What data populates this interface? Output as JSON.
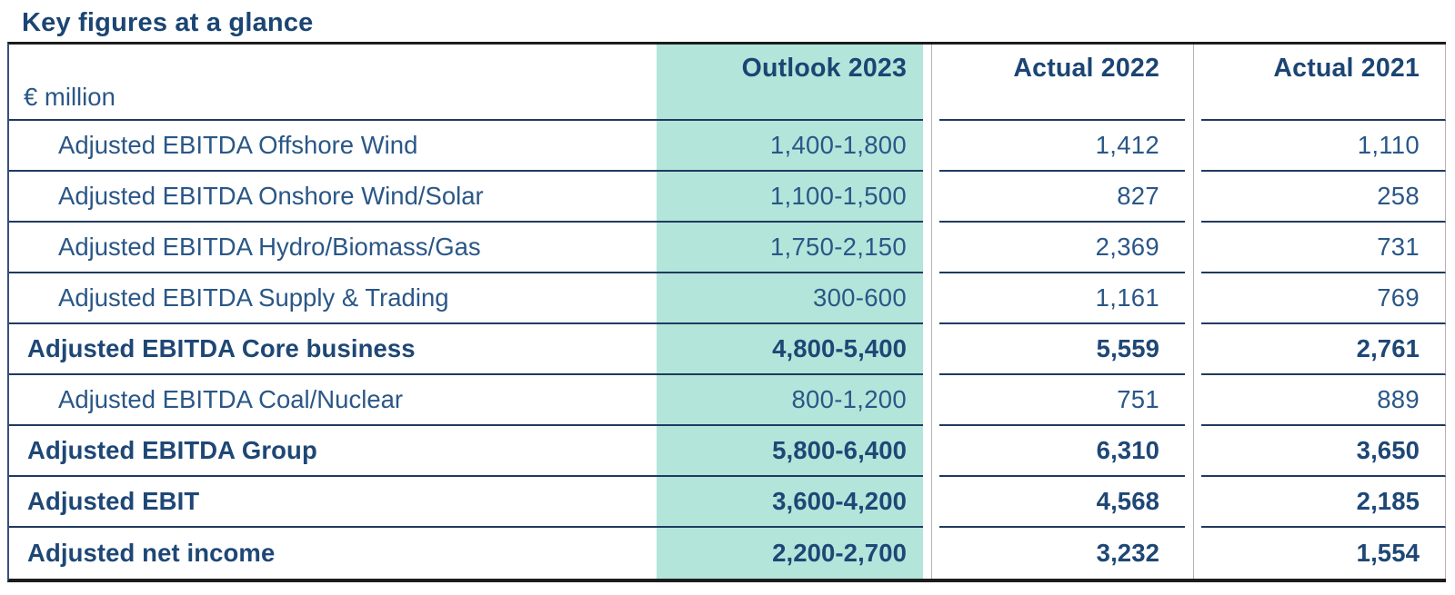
{
  "title": "Key figures at a glance",
  "table": {
    "unit_label": "€ million",
    "columns": [
      "Outlook 2023",
      "Actual 2022",
      "Actual 2021"
    ],
    "rows": [
      {
        "label": "Adjusted EBITDA Offshore Wind",
        "values": [
          "1,400-1,800",
          "1,412",
          "1,110"
        ]
      },
      {
        "label": "Adjusted EBITDA Onshore Wind/Solar",
        "values": [
          "1,100-1,500",
          "827",
          "258"
        ]
      },
      {
        "label": "Adjusted EBITDA Hydro/Biomass/Gas",
        "values": [
          "1,750-2,150",
          "2,369",
          "731"
        ]
      },
      {
        "label": "Adjusted EBITDA Supply & Trading",
        "values": [
          "300-600",
          "1,161",
          "769"
        ]
      },
      {
        "label": "Adjusted EBITDA Core business",
        "values": [
          "4,800-5,400",
          "5,559",
          "2,761"
        ]
      },
      {
        "label": "Adjusted EBITDA Coal/Nuclear",
        "values": [
          "800-1,200",
          "751",
          "889"
        ]
      },
      {
        "label": "Adjusted EBITDA Group",
        "values": [
          "5,800-6,400",
          "6,310",
          "3,650"
        ]
      },
      {
        "label": "Adjusted EBIT",
        "values": [
          "3,600-4,200",
          "4,568",
          "2,185"
        ]
      },
      {
        "label": "Adjusted net income",
        "values": [
          "2,200-2,700",
          "3,232",
          "1,554"
        ]
      }
    ]
  },
  "colors": {
    "highlight_teal": "#b3e5da",
    "navy_text": "#1b4573",
    "regular_text": "#2a5787",
    "rule_dark": "#1c1c1c",
    "row_separator": "#1f3a61",
    "column_divider": "#b3b3b3"
  }
}
